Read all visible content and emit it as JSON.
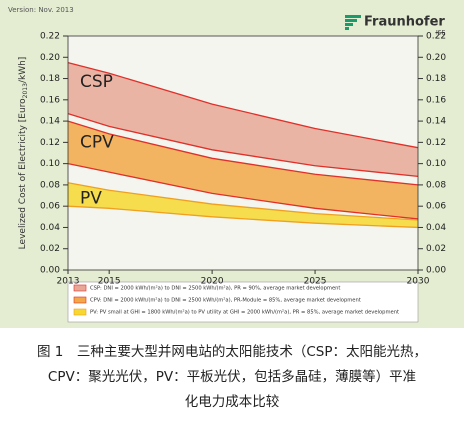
{
  "version": "Version: Nov. 2013",
  "logo": {
    "name": "Fraunhofer",
    "sub": "ISE"
  },
  "caption": [
    "图 1　三种主要大型并网电站的太阳能技术（CSP：太阳能光热，",
    "CPV：聚光光伏，PV：平板光伏，包括多晶硅，薄膜等）平准",
    "化电力成本比较"
  ],
  "chart_data": {
    "type": "band",
    "y_label": [
      "Levelized Cost of Electricity [Euro",
      "2013",
      "/kWh]"
    ],
    "x": [
      2013,
      2015,
      2020,
      2025,
      2030
    ],
    "xlim": [
      2013,
      2030
    ],
    "xticks": [
      2013,
      2015,
      2020,
      2025,
      2030
    ],
    "ylim": [
      0,
      0.22
    ],
    "yticks": [
      {
        "value": 0,
        "label": "0.00"
      },
      {
        "value": 0.02,
        "label": "0.02"
      },
      {
        "value": 0.04,
        "label": "0.04"
      },
      {
        "value": 0.06,
        "label": "0.06"
      },
      {
        "value": 0.08,
        "label": "0.08"
      },
      {
        "value": 0.1,
        "label": "0.10"
      },
      {
        "value": 0.12,
        "label": "0.12"
      },
      {
        "value": 0.14,
        "label": "0.14"
      },
      {
        "value": 0.16,
        "label": "0.16"
      },
      {
        "value": 0.18,
        "label": "0.18"
      },
      {
        "value": 0.2,
        "label": "0.20"
      },
      {
        "value": 0.22,
        "label": "0.22"
      }
    ],
    "series": [
      {
        "name": "CSP",
        "color": "#e8a898",
        "line_color": "#e0302a",
        "high": [
          0.195,
          0.185,
          0.156,
          0.133,
          0.115
        ],
        "low": [
          0.147,
          0.135,
          0.113,
          0.098,
          0.088
        ],
        "legend": "CSP: DNI = 2000 kWh/(m²a) to DNI = 2500 kWh/(m²a), PR = 90%, average market development"
      },
      {
        "name": "CPV",
        "color": "#f2a848",
        "line_color": "#e0302a",
        "high": [
          0.14,
          0.128,
          0.105,
          0.09,
          0.08
        ],
        "low": [
          0.1,
          0.092,
          0.072,
          0.058,
          0.048
        ],
        "legend": "CPV: DNI = 2000 kWh/(m²a) to DNI = 2500 kWh/(m²a), PR-Module = 85%, average market development"
      },
      {
        "name": "PV",
        "color": "#f6d830",
        "line_color": "#f0a020",
        "high": [
          0.082,
          0.075,
          0.062,
          0.053,
          0.047
        ],
        "low": [
          0.06,
          0.058,
          0.05,
          0.044,
          0.04
        ],
        "legend": "PV: PV small at GHI = 1800 kWh/(m²a) to PV utility at GHI = 2000 kWh/(m²a), PR = 85%, average market development"
      }
    ]
  }
}
